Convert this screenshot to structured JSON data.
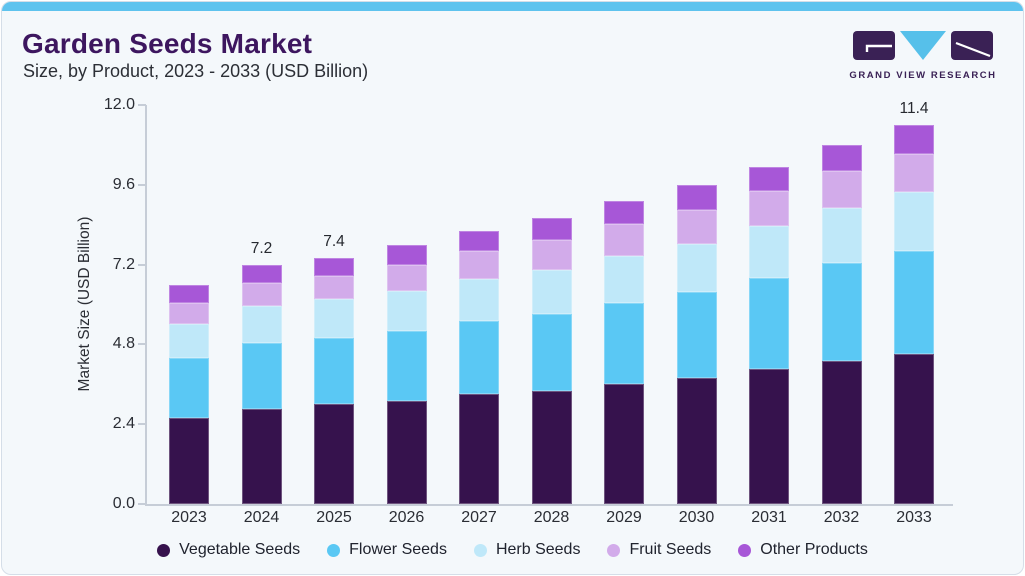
{
  "page": {
    "background_color": "#f4f8fb",
    "accent_strip_color": "#5ec3ee",
    "border_color": "#d5dee8"
  },
  "header": {
    "title": "Garden Seeds Market",
    "subtitle": "Size, by Product, 2023 - 2033 (USD Billion)",
    "title_color": "#3d165f"
  },
  "logo": {
    "text": "GRAND VIEW RESEARCH",
    "dark_color": "#3a2155",
    "accent_color": "#56c0ea"
  },
  "chart_data": {
    "type": "bar",
    "stacked": true,
    "title": "Garden Seeds Market Size, by Product, 2023 - 2033 (USD Billion)",
    "xlabel": "",
    "ylabel": "Market Size (USD Billion)",
    "ylim": [
      0,
      12
    ],
    "yticks": [
      0.0,
      2.4,
      4.8,
      7.2,
      9.6,
      12.0
    ],
    "ytick_labels": [
      "0.0",
      "2.4",
      "4.8",
      "7.2",
      "9.6",
      "12.0"
    ],
    "grid": false,
    "legend_position": "bottom",
    "categories": [
      "2023",
      "2024",
      "2025",
      "2026",
      "2027",
      "2028",
      "2029",
      "2030",
      "2031",
      "2032",
      "2033"
    ],
    "bar_total_labels": [
      "",
      "7.2",
      "7.4",
      "",
      "",
      "",
      "",
      "",
      "",
      "",
      "11.4"
    ],
    "series": [
      {
        "name": "Vegetable Seeds",
        "color": "#36124d",
        "values": [
          2.6,
          2.85,
          3.0,
          3.1,
          3.3,
          3.4,
          3.6,
          3.78,
          4.05,
          4.3,
          4.5
        ]
      },
      {
        "name": "Flower Seeds",
        "color": "#5ac8f4",
        "values": [
          1.8,
          2.0,
          2.0,
          2.1,
          2.2,
          2.3,
          2.45,
          2.6,
          2.76,
          2.95,
          3.1
        ]
      },
      {
        "name": "Herb Seeds",
        "color": "#bfe8f9",
        "values": [
          1.0,
          1.1,
          1.15,
          1.2,
          1.27,
          1.35,
          1.42,
          1.45,
          1.55,
          1.65,
          1.78
        ]
      },
      {
        "name": "Fruit Seeds",
        "color": "#d2abea",
        "values": [
          0.65,
          0.7,
          0.72,
          0.8,
          0.83,
          0.9,
          0.95,
          1.0,
          1.05,
          1.1,
          1.14
        ]
      },
      {
        "name": "Other Products",
        "color": "#a757d7",
        "values": [
          0.55,
          0.55,
          0.53,
          0.6,
          0.6,
          0.65,
          0.68,
          0.77,
          0.74,
          0.8,
          0.88
        ]
      }
    ]
  }
}
